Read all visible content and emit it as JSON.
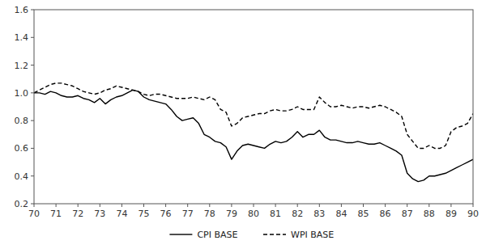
{
  "chart_data": {
    "type": "line",
    "x": [
      70,
      70.25,
      70.5,
      70.75,
      71,
      71.25,
      71.5,
      71.75,
      72,
      72.25,
      72.5,
      72.75,
      73,
      73.25,
      73.5,
      73.75,
      74,
      74.25,
      74.5,
      74.75,
      75,
      75.25,
      75.5,
      75.75,
      76,
      76.25,
      76.5,
      76.75,
      77,
      77.25,
      77.5,
      77.75,
      78,
      78.25,
      78.5,
      78.75,
      79,
      79.25,
      79.5,
      79.75,
      80,
      80.25,
      80.5,
      80.75,
      81,
      81.25,
      81.5,
      81.75,
      82,
      82.25,
      82.5,
      82.75,
      83,
      83.25,
      83.5,
      83.75,
      84,
      84.25,
      84.5,
      84.75,
      85,
      85.25,
      85.5,
      85.75,
      86,
      86.25,
      86.5,
      86.75,
      87,
      87.25,
      87.5,
      87.75,
      88,
      88.25,
      88.5,
      88.75,
      89,
      89.25,
      89.5,
      89.75,
      90
    ],
    "series": [
      {
        "name": "CPI BASE",
        "color": "#000000",
        "line_style": "solid",
        "values": [
          1.0,
          1.0,
          0.99,
          1.01,
          1.0,
          0.98,
          0.97,
          0.97,
          0.98,
          0.96,
          0.95,
          0.93,
          0.96,
          0.92,
          0.95,
          0.97,
          0.98,
          1.0,
          1.02,
          1.01,
          0.97,
          0.95,
          0.94,
          0.93,
          0.92,
          0.88,
          0.83,
          0.8,
          0.81,
          0.82,
          0.78,
          0.7,
          0.68,
          0.65,
          0.64,
          0.61,
          0.52,
          0.58,
          0.62,
          0.63,
          0.62,
          0.61,
          0.6,
          0.63,
          0.65,
          0.64,
          0.65,
          0.68,
          0.72,
          0.68,
          0.7,
          0.7,
          0.73,
          0.68,
          0.66,
          0.66,
          0.65,
          0.64,
          0.64,
          0.65,
          0.64,
          0.63,
          0.63,
          0.64,
          0.62,
          0.6,
          0.58,
          0.55,
          0.42,
          0.38,
          0.36,
          0.37,
          0.4,
          0.4,
          0.41,
          0.42,
          0.44,
          0.46,
          0.48,
          0.5,
          0.52
        ]
      },
      {
        "name": "WPI BASE",
        "color": "#000000",
        "line_style": "dashed",
        "values": [
          1.0,
          1.02,
          1.04,
          1.06,
          1.07,
          1.07,
          1.06,
          1.05,
          1.03,
          1.01,
          1.0,
          0.99,
          1.0,
          1.02,
          1.03,
          1.05,
          1.04,
          1.03,
          1.02,
          1.01,
          0.99,
          0.98,
          0.99,
          0.99,
          0.98,
          0.97,
          0.96,
          0.96,
          0.96,
          0.97,
          0.96,
          0.95,
          0.97,
          0.95,
          0.88,
          0.86,
          0.76,
          0.78,
          0.82,
          0.83,
          0.84,
          0.85,
          0.85,
          0.87,
          0.88,
          0.87,
          0.87,
          0.88,
          0.9,
          0.88,
          0.88,
          0.88,
          0.97,
          0.93,
          0.9,
          0.9,
          0.91,
          0.9,
          0.89,
          0.9,
          0.9,
          0.89,
          0.9,
          0.91,
          0.9,
          0.88,
          0.86,
          0.83,
          0.7,
          0.65,
          0.6,
          0.6,
          0.62,
          0.6,
          0.6,
          0.62,
          0.72,
          0.75,
          0.76,
          0.78,
          0.85
        ]
      }
    ],
    "xlim": [
      70,
      90
    ],
    "ylim": [
      0.2,
      1.6
    ],
    "xticks": [
      70,
      71,
      72,
      73,
      74,
      75,
      76,
      77,
      78,
      79,
      80,
      81,
      82,
      83,
      84,
      85,
      86,
      87,
      88,
      89,
      90
    ],
    "yticks": [
      0.2,
      0.4,
      0.6,
      0.8,
      {
        "value": 1,
        "label": "1.0"
      },
      1.2,
      1.4,
      1.6
    ],
    "grid": false,
    "legend": "bottom"
  }
}
